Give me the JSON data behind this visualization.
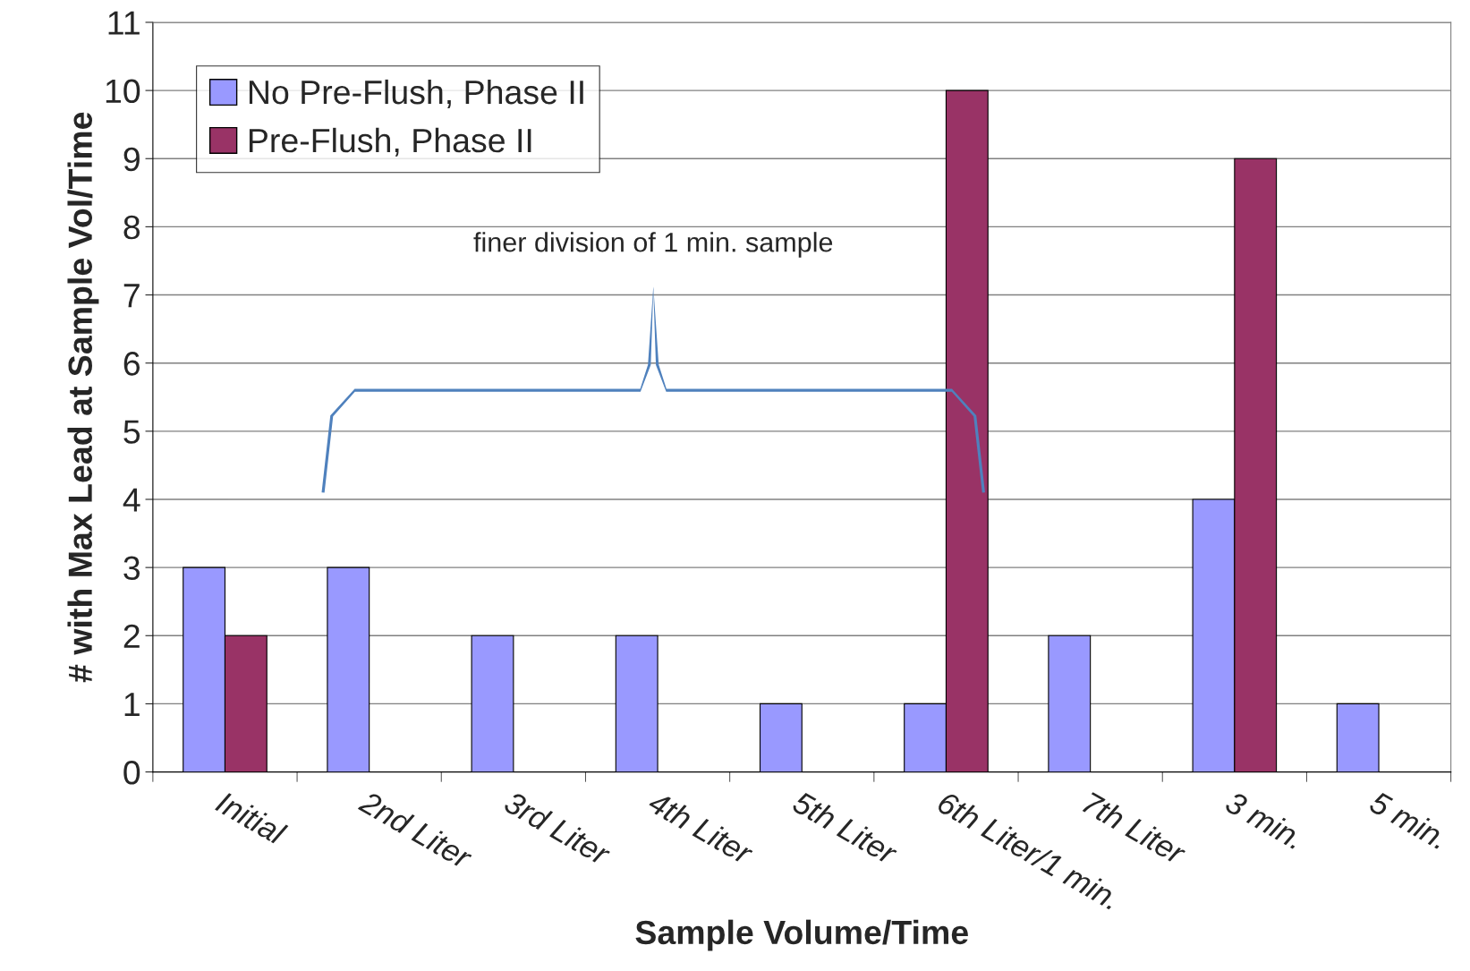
{
  "chart_data": {
    "type": "bar",
    "xlabel": "Sample Volume/Time",
    "ylabel": "# with Max Lead at Sample Vol/Time",
    "categories": [
      "Initial",
      "2nd Liter",
      "3rd Liter",
      "4th Liter",
      "5th Liter",
      "6th Liter/1 min.",
      "7th Liter",
      "3 min.",
      "5 min."
    ],
    "series": [
      {
        "name": "No Pre-Flush, Phase II",
        "color": "#9999ff",
        "values": [
          3,
          3,
          2,
          2,
          1,
          1,
          2,
          4,
          1
        ]
      },
      {
        "name": "Pre-Flush, Phase II",
        "color": "#993366",
        "values": [
          2,
          0,
          0,
          0,
          0,
          10,
          0,
          9,
          0
        ]
      }
    ],
    "ylim": [
      0,
      11
    ],
    "yticks": [
      0,
      1,
      2,
      3,
      4,
      5,
      6,
      7,
      8,
      9,
      10,
      11
    ],
    "grid": "y",
    "legend": "top left",
    "annotations": [
      "finer division of 1 min. sample"
    ]
  }
}
